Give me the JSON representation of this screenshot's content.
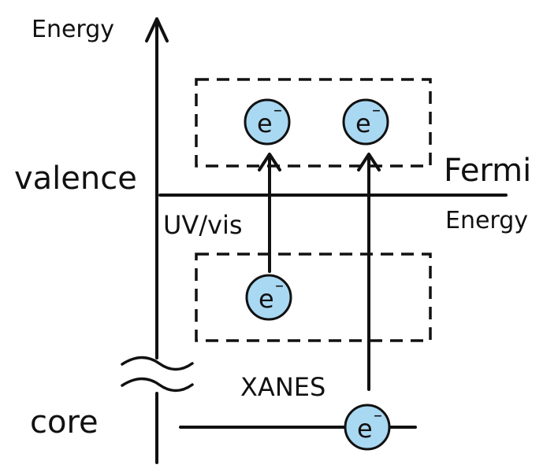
{
  "axis": {
    "label": "Energy"
  },
  "levels": {
    "valence": "valence",
    "core": "core"
  },
  "fermi": {
    "line1": "Fermi",
    "line2": "Energy"
  },
  "transitions": {
    "uv_vis": "UV/vis",
    "xanes": "XANES"
  },
  "electron": {
    "symbol": "e",
    "charge": "–"
  },
  "colors": {
    "ink": "#111111",
    "electron_fill": "#a9d8f2"
  }
}
